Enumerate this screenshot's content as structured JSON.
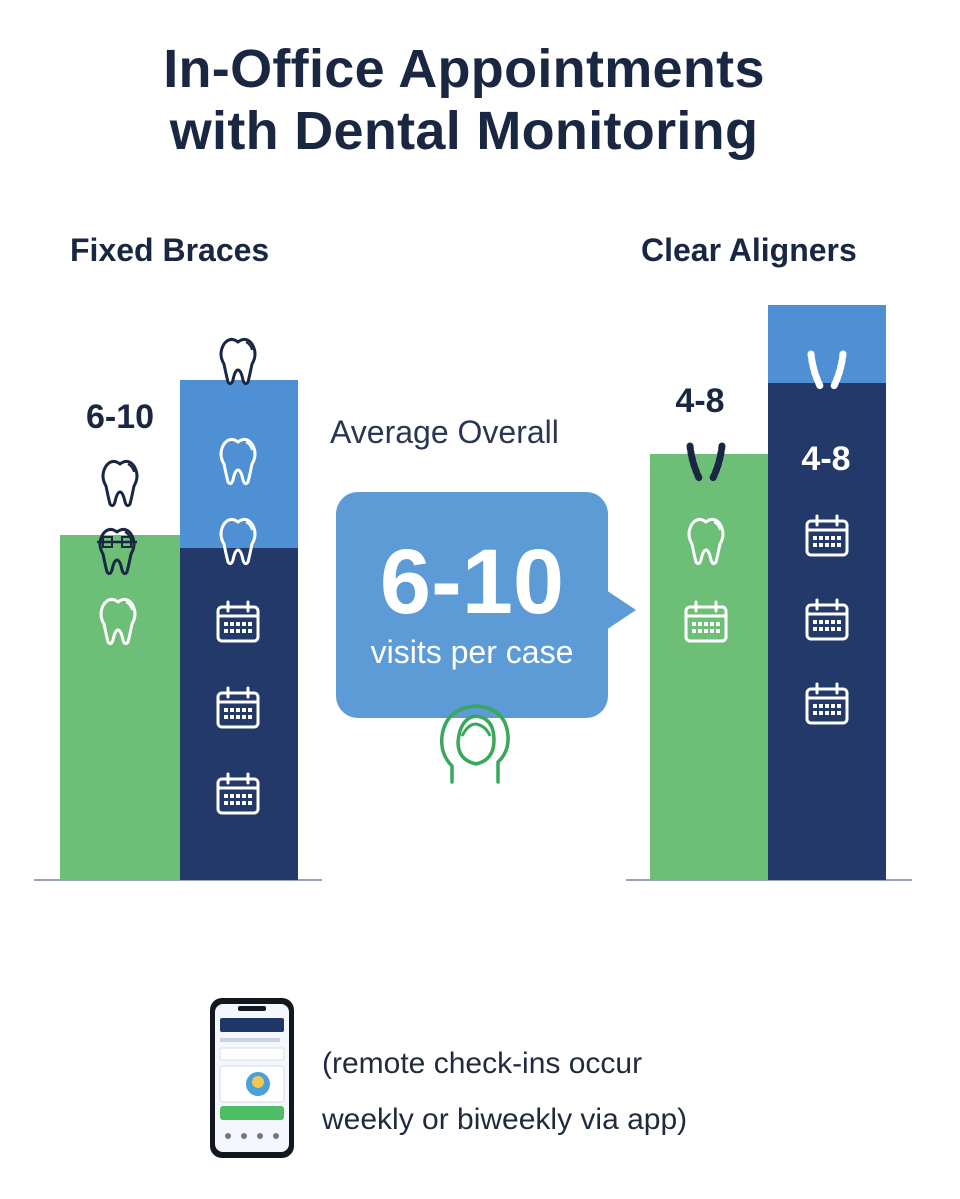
{
  "title": {
    "line1": "In-Office Appointments",
    "line2": "with Dental Monitoring"
  },
  "average": {
    "label": "Average Overall",
    "value": "6-10",
    "unit": "visits per case"
  },
  "footnote": {
    "line1": "(remote check-ins occur",
    "line2": "weekly or biweekly via app)"
  },
  "colors": {
    "green": "#6dbf77",
    "light_blue": "#4f8fd4",
    "navy": "#22396a",
    "bubble": "#5c9bd6",
    "head_icon": "#3aa85a"
  },
  "chart_data": {
    "type": "bar",
    "groups": [
      {
        "name": "Fixed Braces",
        "bars": [
          {
            "color": "green",
            "label": "6-10",
            "icons": [
              "tooth-icon",
              "tooth-with-braces-icon",
              "tooth-icon"
            ]
          },
          {
            "color": "stacked-light-blue-navy",
            "label": "",
            "icons": [
              "tooth-icon",
              "tooth-icon",
              "tooth-icon",
              "calendar-icon",
              "calendar-icon",
              "calendar-icon"
            ]
          }
        ]
      },
      {
        "name": "Clear Aligners",
        "bars": [
          {
            "color": "green",
            "label": "4-8",
            "icons": [
              "aligner-icon",
              "tooth-icon",
              "calendar-icon"
            ]
          },
          {
            "color": "stacked-light-blue-navy",
            "label": "4-8",
            "icons": [
              "aligner-icon",
              "calendar-icon",
              "calendar-icon",
              "calendar-icon"
            ]
          }
        ]
      }
    ],
    "value_axis_shown": false
  }
}
